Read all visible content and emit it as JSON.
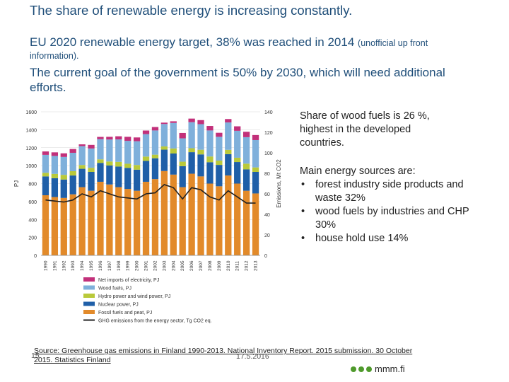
{
  "header": {
    "title": "The share of renewable energy is increasing constantly.",
    "line1_main": "EU 2020 renewable energy target, 38% was reached in 2014 ",
    "line1_small": "(unofficial up front",
    "line2": "information).",
    "line3": "The current goal of the government is 50% by 2030, which will need additional efforts."
  },
  "side": {
    "wood_share": "Share of wood fuels is 26 %, highest in the developed countries.",
    "sources_title": "Main energy sources are:",
    "sources": [
      "forest industry side products and waste 32%",
      "wood fuels by industries and CHP 30%",
      "house hold use 14%"
    ]
  },
  "footer": {
    "page": "15",
    "date": "17.5.2016",
    "source": "Source: Greenhouse gas emissions in Finland 1990-2013. National Inventory Report. 2015 submission. 30 October 2015. Statistics Finland",
    "logo": "mmm.fi"
  },
  "colors": {
    "text_blue": "#1f4e79",
    "fossil": "#e28a2a",
    "nuclear": "#1f5fa8",
    "hydro": "#b9c93a",
    "wood": "#7fb0db",
    "imports": "#c2307a",
    "ghg": "#222222"
  },
  "chart_data": {
    "type": "bar",
    "stacked": true,
    "categories": [
      "1990",
      "1991",
      "1992",
      "1993",
      "1994",
      "1995",
      "1996",
      "1997",
      "1998",
      "1999",
      "2000",
      "2001",
      "2002",
      "2003",
      "2004",
      "2005",
      "2006",
      "2007",
      "2008",
      "2009",
      "2010",
      "2011",
      "2012",
      "2013"
    ],
    "y_left_label": "PJ",
    "y_left_lim": [
      0,
      1600
    ],
    "y_left_ticks": [
      0,
      200,
      400,
      600,
      800,
      1000,
      1200,
      1400,
      1600
    ],
    "y_right_label": "Emissions, Mt CO2",
    "y_right_lim": [
      0,
      140
    ],
    "y_right_ticks": [
      0,
      20,
      40,
      60,
      80,
      100,
      120,
      140
    ],
    "series": [
      {
        "name": "Fossil fuels and peat, PJ",
        "color": "#e28a2a",
        "values": [
          670,
          650,
          640,
          680,
          760,
          720,
          820,
          790,
          760,
          740,
          720,
          820,
          850,
          940,
          900,
          760,
          910,
          880,
          800,
          770,
          890,
          800,
          720,
          690
        ]
      },
      {
        "name": "Nuclear power, PJ",
        "color": "#1f5fa8",
        "values": [
          210,
          210,
          205,
          210,
          205,
          210,
          210,
          212,
          230,
          235,
          235,
          233,
          232,
          238,
          235,
          234,
          240,
          245,
          238,
          238,
          238,
          240,
          238,
          240
        ]
      },
      {
        "name": "Hydro power and wind power, PJ",
        "color": "#b9c93a",
        "values": [
          40,
          48,
          52,
          48,
          42,
          46,
          40,
          44,
          52,
          46,
          52,
          48,
          40,
          36,
          56,
          50,
          44,
          52,
          64,
          48,
          48,
          48,
          64,
          50
        ]
      },
      {
        "name": "Wood fuels, PJ",
        "color": "#7fb0db",
        "values": [
          200,
          200,
          200,
          205,
          210,
          215,
          225,
          245,
          250,
          255,
          265,
          250,
          270,
          250,
          285,
          260,
          290,
          285,
          290,
          265,
          305,
          300,
          295,
          305
        ]
      },
      {
        "name": "Net imports of electricity, PJ",
        "color": "#c2307a",
        "values": [
          38,
          40,
          40,
          42,
          20,
          40,
          25,
          30,
          35,
          45,
          42,
          40,
          38,
          15,
          18,
          60,
          40,
          45,
          50,
          45,
          38,
          50,
          60,
          56
        ]
      }
    ],
    "line_series": {
      "name": "GHG emissions from the energy sector, Tg CO2 eq.",
      "color": "#222222",
      "axis": "right",
      "values": [
        54,
        53,
        52,
        54,
        60,
        57,
        63,
        60,
        57,
        56,
        55,
        60,
        61,
        69,
        66,
        55,
        66,
        64,
        57,
        54,
        63,
        57,
        51,
        51
      ]
    }
  }
}
